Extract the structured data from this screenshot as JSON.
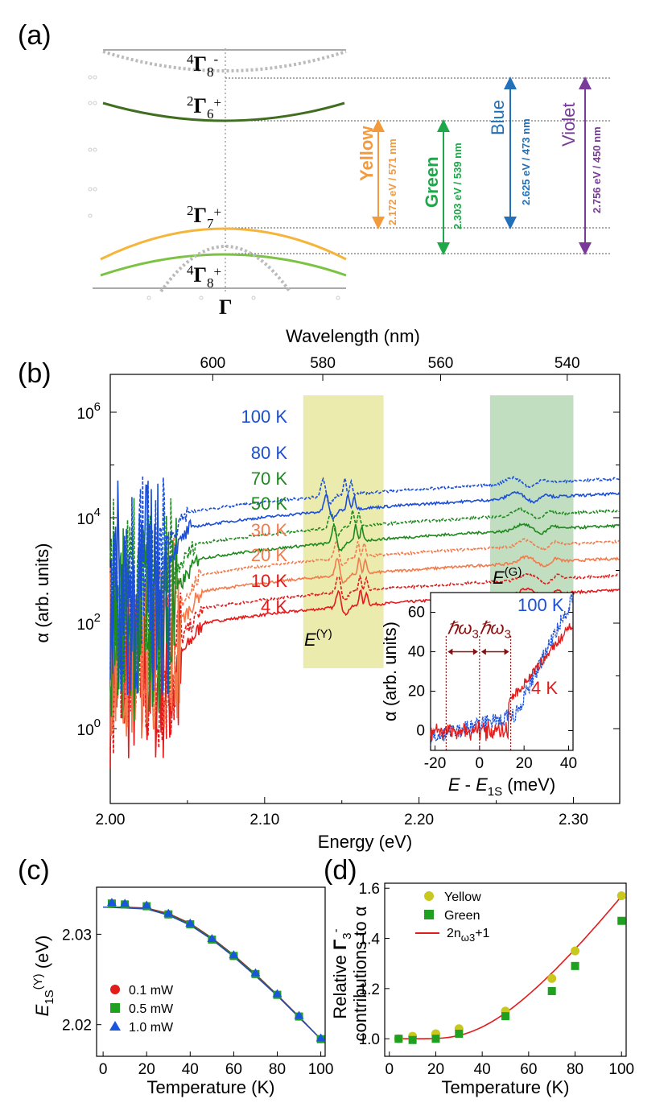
{
  "panels": {
    "a": "(a)",
    "b": "(b)",
    "c": "(c)",
    "d": "(d)"
  },
  "colors": {
    "yellow": "#f39a3c",
    "green": "#1fa84a",
    "blue": "#2170b8",
    "violet": "#7a3a9a",
    "k100": "#1a4fd6",
    "k80": "#1a4fd6",
    "k70": "#1e8a1e",
    "k50": "#1e8a1e",
    "k30": "#f37a4a",
    "k20": "#f37a4a",
    "k10": "#e21b1b",
    "k4": "#e21b1b",
    "shadeY": "#e8e7a0",
    "shadeG": "#b6d8b6"
  },
  "panel_a": {
    "levels": [
      {
        "main": "4",
        "sym": "Γ",
        "sub": "8",
        "sign": "-"
      },
      {
        "main": "2",
        "sym": "Γ",
        "sub": "6",
        "sign": "+"
      },
      {
        "main": "2",
        "sym": "Γ",
        "sub": "7",
        "sign": "+"
      },
      {
        "main": "4",
        "sym": "Γ",
        "sub": "8",
        "sign": "+"
      }
    ],
    "gamma": "Γ",
    "transitions": [
      {
        "name": "Yellow",
        "value": "2.172 eV / 571 nm"
      },
      {
        "name": "Green",
        "value": "2.303 eV / 539 nm"
      },
      {
        "name": "Blue",
        "value": "2.625 eV / 473 nm"
      },
      {
        "name": "Violet",
        "value": "2.756 eV / 450 nm"
      }
    ]
  },
  "chart_data": [
    {
      "panel": "b",
      "type": "line",
      "xlabel": "Energy (eV)",
      "ylabel": "α (arb. units)",
      "x2label": "Wavelength (nm)",
      "x_ticks": [
        "2.00",
        "2.10",
        "2.20",
        "2.30"
      ],
      "x2_ticks": [
        "600",
        "580",
        "560",
        "540"
      ],
      "y_ticks": [
        "10^0",
        "10^2",
        "10^4",
        "10^6"
      ],
      "xlim": [
        2.0,
        2.33
      ],
      "log_y": true,
      "series": [
        {
          "name": "100 K",
          "key": "k100",
          "style": "dashed"
        },
        {
          "name": "80 K",
          "key": "k80",
          "style": "solid"
        },
        {
          "name": "70 K",
          "key": "k70",
          "style": "dashed"
        },
        {
          "name": "50 K",
          "key": "k50",
          "style": "solid"
        },
        {
          "name": "30 K",
          "key": "k30",
          "style": "dashed"
        },
        {
          "name": "20 K",
          "key": "k20",
          "style": "solid"
        },
        {
          "name": "10 K",
          "key": "k10",
          "style": "dashed"
        },
        {
          "name": "4 K",
          "key": "k4",
          "style": "solid"
        }
      ],
      "shaded_regions": [
        {
          "label": "E(Y)",
          "main": "E",
          "sup": "(Y)",
          "x_from": 2.125,
          "x_to": 2.177
        },
        {
          "label": "E(G)",
          "main": "E",
          "sup": "(G)",
          "x_from": 2.246,
          "x_to": 2.3
        }
      ]
    },
    {
      "panel": "b-inset",
      "type": "line",
      "xlabel": "E - E1S (meV)",
      "xlabel_parts": {
        "a": "E",
        "b": " - ",
        "c": "E",
        "sub": "1S",
        "d": " (meV)"
      },
      "ylabel": "α (arb. units)",
      "x_ticks": [
        "-20",
        "0",
        "20",
        "40"
      ],
      "y_ticks": [
        "0",
        "20",
        "40",
        "60"
      ],
      "xlim": [
        -22,
        42
      ],
      "ylim": [
        -10,
        70
      ],
      "series": [
        {
          "name": "100 K",
          "key": "k100"
        },
        {
          "name": "4 K",
          "key": "k4"
        }
      ],
      "annotations": [
        "ℏω3",
        "ℏω3"
      ],
      "markers_x": [
        -15,
        0,
        14
      ]
    },
    {
      "panel": "c",
      "type": "scatter",
      "xlabel": "Temperature (K)",
      "ylabel": "E1S(Y) (eV)",
      "x_ticks": [
        "0",
        "20",
        "40",
        "60",
        "80",
        "100"
      ],
      "y_ticks": [
        "2.02",
        "2.03"
      ],
      "xlim": [
        -3,
        102
      ],
      "ylim": [
        2.0165,
        2.0352
      ],
      "x": [
        4,
        10,
        20,
        30,
        40,
        50,
        60,
        70,
        80,
        90,
        100
      ],
      "series": [
        {
          "name": "0.1 mW",
          "marker": "circle",
          "color": "#e21b1b",
          "values": [
            2.0334,
            2.0333,
            2.0331,
            2.0322,
            2.0311,
            2.0294,
            2.0276,
            2.0256,
            2.0233,
            2.0209,
            2.0184
          ]
        },
        {
          "name": "0.5 mW",
          "marker": "square",
          "color": "#1fa020",
          "values": [
            2.0334,
            2.0333,
            2.0331,
            2.0322,
            2.0311,
            2.0294,
            2.0276,
            2.0256,
            2.0233,
            2.0209,
            2.0184
          ]
        },
        {
          "name": "1.0 mW",
          "marker": "triangle",
          "color": "#1a55e0",
          "values": [
            2.0335,
            2.0334,
            2.0332,
            2.0323,
            2.0312,
            2.0295,
            2.0277,
            2.0257,
            2.0234,
            2.021,
            2.0185
          ]
        }
      ],
      "fits": [
        {
          "color": "#9a2a2a",
          "x": [
            0,
            10,
            20,
            30,
            40,
            50,
            60,
            70,
            80,
            90,
            100
          ],
          "values": [
            2.033,
            2.033,
            2.0329,
            2.0323,
            2.0312,
            2.0296,
            2.0277,
            2.0256,
            2.0233,
            2.0209,
            2.0184
          ]
        },
        {
          "color": "#1a7a3a",
          "x": [
            0,
            10,
            20,
            30,
            40,
            50,
            60,
            70,
            80,
            90,
            100
          ],
          "values": [
            2.033,
            2.033,
            2.0328,
            2.0322,
            2.0311,
            2.0295,
            2.0276,
            2.0255,
            2.0232,
            2.0209,
            2.0184
          ]
        },
        {
          "color": "#2a4ab0",
          "x": [
            0,
            10,
            20,
            30,
            40,
            50,
            60,
            70,
            80,
            90,
            100
          ],
          "values": [
            2.033,
            2.0329,
            2.0328,
            2.0321,
            2.031,
            2.0294,
            2.0275,
            2.0254,
            2.0232,
            2.0208,
            2.0184
          ]
        }
      ]
    },
    {
      "panel": "d",
      "type": "scatter",
      "xlabel": "Temperature (K)",
      "ylabel": "Relative Γ3- contributions to α",
      "ylabel_parts": {
        "a": "Relative ",
        "g": "Γ",
        "sub": "3",
        "sup": "-",
        "b": "contributions to α"
      },
      "x_ticks": [
        "0",
        "20",
        "40",
        "60",
        "80",
        "100"
      ],
      "y_ticks": [
        "1.0",
        "1.2",
        "1.4",
        "1.6"
      ],
      "xlim": [
        -2,
        102
      ],
      "ylim": [
        0.93,
        1.62
      ],
      "series": [
        {
          "name": "Yellow",
          "marker": "circle",
          "color": "#c8c81e",
          "x": [
            4,
            10,
            20,
            30,
            50,
            70,
            80,
            100
          ],
          "values": [
            1.0,
            1.01,
            1.02,
            1.04,
            1.11,
            1.24,
            1.35,
            1.57
          ]
        },
        {
          "name": "Green",
          "marker": "square",
          "color": "#1fa020",
          "x": [
            4,
            10,
            20,
            30,
            50,
            70,
            80,
            100
          ],
          "values": [
            1.0,
            0.995,
            1.0,
            1.02,
            1.09,
            1.19,
            1.29,
            1.47
          ]
        }
      ],
      "fit": {
        "name": "2nω3+1",
        "label_parts": {
          "a": "2n",
          "sub": "ω3",
          "b": "+1"
        },
        "color": "#e21b1b",
        "omega_meV": 13
      }
    }
  ]
}
